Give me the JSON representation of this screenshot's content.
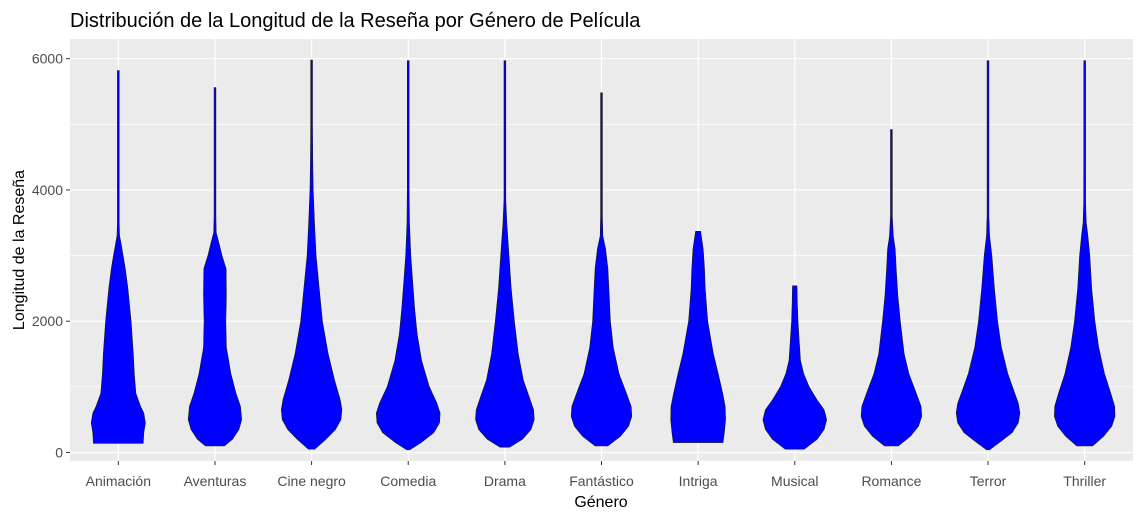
{
  "chart_data": {
    "type": "violin",
    "title": "Distribución de la Longitud de la Reseña por Género de Película",
    "xlabel": "Género",
    "ylabel": "Longitud de la Reseña",
    "ylim": [
      -130,
      6300
    ],
    "yticks": [
      0,
      2000,
      4000,
      6000
    ],
    "yticklabels": [
      "0",
      "2000",
      "4000",
      "6000"
    ],
    "grid": true,
    "fill_color": "#0000ff",
    "panel_color": "#ebebeb",
    "categories": [
      "Animación",
      "Aventuras",
      "Cine negro",
      "Comedia",
      "Drama",
      "Fantástico",
      "Intriga",
      "Musical",
      "Romance",
      "Terror",
      "Thriller"
    ],
    "violins": [
      {
        "name": "Animación",
        "min": 140,
        "max": 5820,
        "profile": [
          [
            140,
            0.78
          ],
          [
            300,
            0.8
          ],
          [
            450,
            0.85
          ],
          [
            600,
            0.8
          ],
          [
            700,
            0.7
          ],
          [
            900,
            0.55
          ],
          [
            1200,
            0.5
          ],
          [
            1500,
            0.47
          ],
          [
            2000,
            0.4
          ],
          [
            2500,
            0.3
          ],
          [
            2800,
            0.22
          ],
          [
            3000,
            0.15
          ],
          [
            3200,
            0.08
          ],
          [
            3300,
            0.04
          ],
          [
            3500,
            0.02
          ],
          [
            4000,
            0.015
          ],
          [
            4500,
            0.01
          ],
          [
            5000,
            0.005
          ],
          [
            5820,
            0.005
          ]
        ]
      },
      {
        "name": "Aventuras",
        "min": 100,
        "max": 5560,
        "profile": [
          [
            100,
            0.3
          ],
          [
            200,
            0.55
          ],
          [
            350,
            0.75
          ],
          [
            500,
            0.84
          ],
          [
            700,
            0.8
          ],
          [
            900,
            0.66
          ],
          [
            1200,
            0.5
          ],
          [
            1600,
            0.36
          ],
          [
            2000,
            0.34
          ],
          [
            2400,
            0.36
          ],
          [
            2800,
            0.35
          ],
          [
            3000,
            0.22
          ],
          [
            3200,
            0.12
          ],
          [
            3350,
            0.04
          ],
          [
            3600,
            0.015
          ],
          [
            4000,
            0.01
          ],
          [
            5560,
            0.005
          ]
        ]
      },
      {
        "name": "Cine negro",
        "min": 50,
        "max": 5980,
        "profile": [
          [
            50,
            0.1
          ],
          [
            200,
            0.45
          ],
          [
            350,
            0.75
          ],
          [
            500,
            0.92
          ],
          [
            650,
            0.95
          ],
          [
            800,
            0.9
          ],
          [
            1100,
            0.72
          ],
          [
            1500,
            0.52
          ],
          [
            2000,
            0.34
          ],
          [
            2500,
            0.24
          ],
          [
            3000,
            0.14
          ],
          [
            3500,
            0.09
          ],
          [
            4000,
            0.05
          ],
          [
            4500,
            0.035
          ],
          [
            5000,
            0.025
          ],
          [
            5500,
            0.005
          ],
          [
            5980,
            0.005
          ]
        ]
      },
      {
        "name": "Comedia",
        "min": 40,
        "max": 5970,
        "profile": [
          [
            40,
            0.05
          ],
          [
            150,
            0.4
          ],
          [
            300,
            0.8
          ],
          [
            450,
            0.98
          ],
          [
            600,
            1.0
          ],
          [
            750,
            0.9
          ],
          [
            1000,
            0.66
          ],
          [
            1400,
            0.42
          ],
          [
            1800,
            0.28
          ],
          [
            2200,
            0.2
          ],
          [
            2600,
            0.14
          ],
          [
            3000,
            0.08
          ],
          [
            3500,
            0.04
          ],
          [
            4000,
            0.02
          ],
          [
            5000,
            0.01
          ],
          [
            5970,
            0.005
          ]
        ]
      },
      {
        "name": "Drama",
        "min": 80,
        "max": 5970,
        "profile": [
          [
            80,
            0.15
          ],
          [
            200,
            0.55
          ],
          [
            350,
            0.82
          ],
          [
            500,
            0.92
          ],
          [
            650,
            0.9
          ],
          [
            850,
            0.76
          ],
          [
            1100,
            0.58
          ],
          [
            1500,
            0.42
          ],
          [
            2000,
            0.3
          ],
          [
            2500,
            0.2
          ],
          [
            3000,
            0.13
          ],
          [
            3500,
            0.06
          ],
          [
            3850,
            0.02
          ],
          [
            4200,
            0.01
          ],
          [
            5970,
            0.005
          ]
        ]
      },
      {
        "name": "Fantástico",
        "min": 100,
        "max": 5480,
        "profile": [
          [
            100,
            0.2
          ],
          [
            250,
            0.6
          ],
          [
            400,
            0.85
          ],
          [
            550,
            0.95
          ],
          [
            700,
            0.93
          ],
          [
            900,
            0.78
          ],
          [
            1200,
            0.55
          ],
          [
            1600,
            0.37
          ],
          [
            2000,
            0.28
          ],
          [
            2400,
            0.24
          ],
          [
            2800,
            0.2
          ],
          [
            3100,
            0.13
          ],
          [
            3300,
            0.04
          ],
          [
            3600,
            0.01
          ],
          [
            5480,
            0.005
          ]
        ]
      },
      {
        "name": "Intriga",
        "min": 150,
        "max": 3370,
        "profile": [
          [
            150,
            0.78
          ],
          [
            300,
            0.82
          ],
          [
            500,
            0.86
          ],
          [
            700,
            0.85
          ],
          [
            900,
            0.77
          ],
          [
            1200,
            0.63
          ],
          [
            1500,
            0.48
          ],
          [
            2000,
            0.3
          ],
          [
            2500,
            0.22
          ],
          [
            2800,
            0.2
          ],
          [
            3100,
            0.16
          ],
          [
            3300,
            0.1
          ],
          [
            3370,
            0.08
          ]
        ]
      },
      {
        "name": "Musical",
        "min": 50,
        "max": 2540,
        "profile": [
          [
            50,
            0.3
          ],
          [
            200,
            0.7
          ],
          [
            350,
            0.92
          ],
          [
            500,
            1.0
          ],
          [
            650,
            0.92
          ],
          [
            800,
            0.7
          ],
          [
            1000,
            0.45
          ],
          [
            1200,
            0.28
          ],
          [
            1400,
            0.18
          ],
          [
            1700,
            0.14
          ],
          [
            2000,
            0.1
          ],
          [
            2300,
            0.08
          ],
          [
            2540,
            0.07
          ]
        ]
      },
      {
        "name": "Romance",
        "min": 100,
        "max": 4920,
        "profile": [
          [
            100,
            0.22
          ],
          [
            250,
            0.6
          ],
          [
            400,
            0.85
          ],
          [
            550,
            0.95
          ],
          [
            700,
            0.93
          ],
          [
            900,
            0.78
          ],
          [
            1200,
            0.55
          ],
          [
            1500,
            0.4
          ],
          [
            2000,
            0.28
          ],
          [
            2400,
            0.2
          ],
          [
            2800,
            0.15
          ],
          [
            3100,
            0.12
          ],
          [
            3300,
            0.06
          ],
          [
            3600,
            0.015
          ],
          [
            4000,
            0.01
          ],
          [
            4920,
            0.005
          ]
        ]
      },
      {
        "name": "Terror",
        "min": 40,
        "max": 5970,
        "profile": [
          [
            40,
            0.05
          ],
          [
            150,
            0.35
          ],
          [
            300,
            0.75
          ],
          [
            450,
            0.95
          ],
          [
            600,
            1.0
          ],
          [
            750,
            0.95
          ],
          [
            950,
            0.8
          ],
          [
            1200,
            0.62
          ],
          [
            1600,
            0.42
          ],
          [
            2000,
            0.3
          ],
          [
            2500,
            0.2
          ],
          [
            3000,
            0.12
          ],
          [
            3300,
            0.05
          ],
          [
            3600,
            0.015
          ],
          [
            4000,
            0.01
          ],
          [
            5970,
            0.005
          ]
        ]
      },
      {
        "name": "Thriller",
        "min": 100,
        "max": 5970,
        "profile": [
          [
            100,
            0.25
          ],
          [
            250,
            0.6
          ],
          [
            400,
            0.85
          ],
          [
            550,
            0.95
          ],
          [
            700,
            0.94
          ],
          [
            900,
            0.82
          ],
          [
            1200,
            0.62
          ],
          [
            1600,
            0.44
          ],
          [
            2000,
            0.32
          ],
          [
            2500,
            0.22
          ],
          [
            3000,
            0.16
          ],
          [
            3300,
            0.1
          ],
          [
            3500,
            0.05
          ],
          [
            3800,
            0.03
          ],
          [
            4500,
            0.02
          ],
          [
            5000,
            0.015
          ],
          [
            5500,
            0.01
          ],
          [
            5970,
            0.005
          ]
        ]
      }
    ]
  }
}
